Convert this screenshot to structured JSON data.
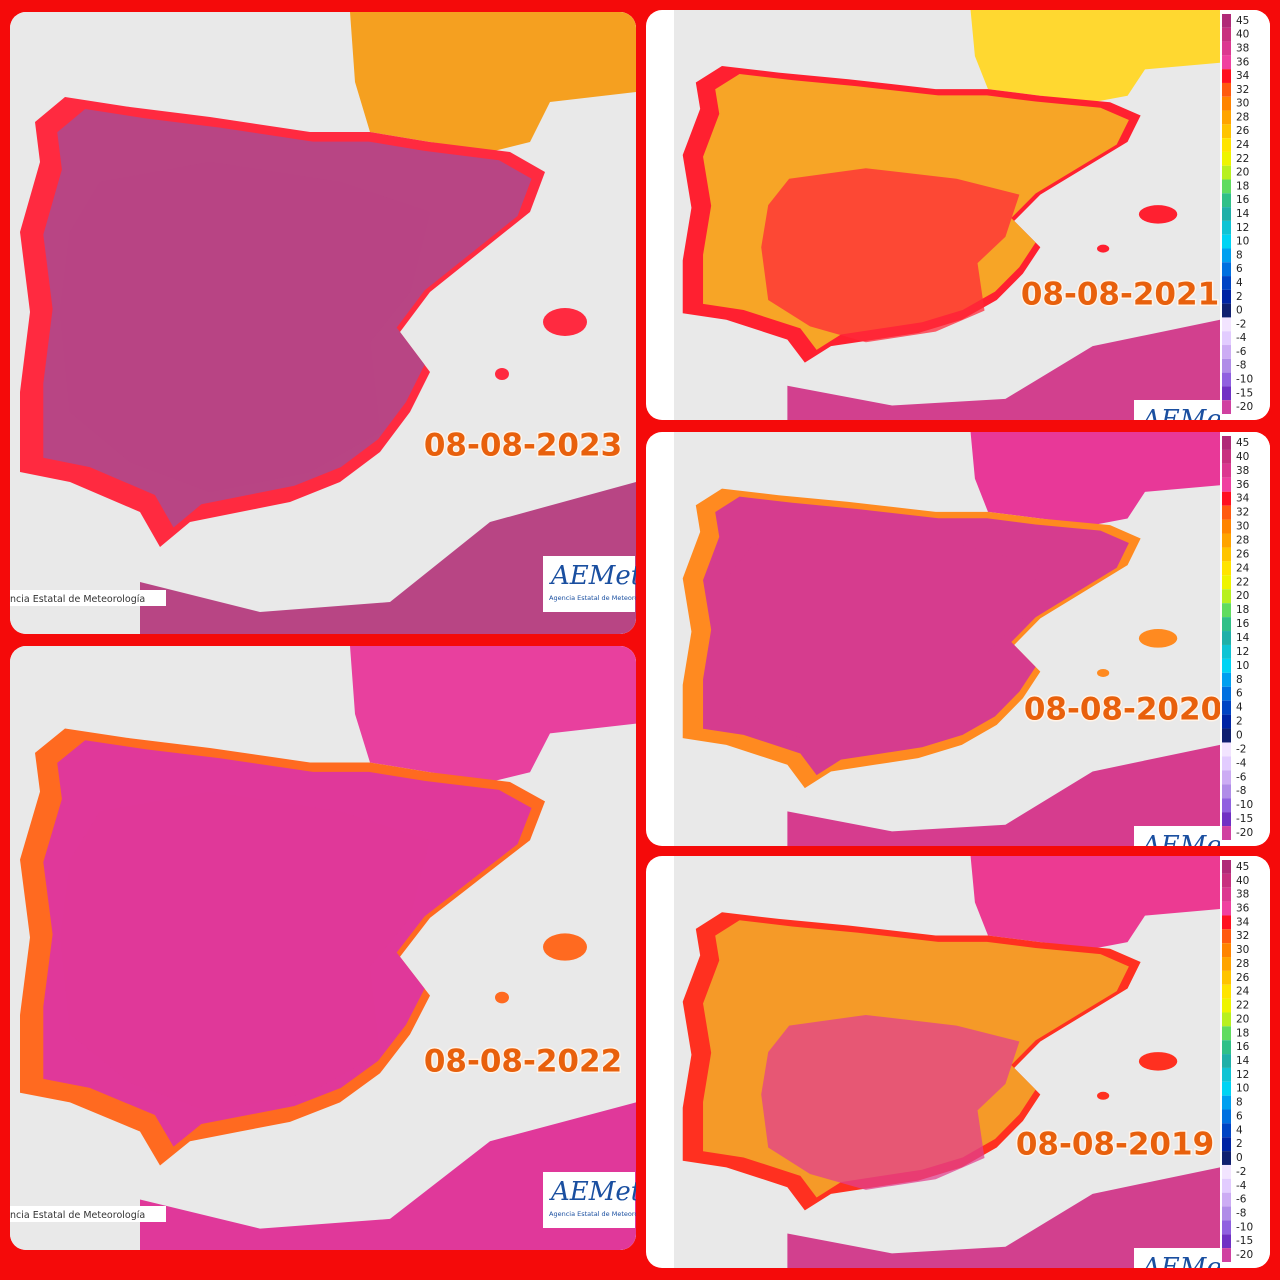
{
  "panels": [
    {
      "date": "08-08-2023",
      "logo": "AEMet",
      "logo_caption": "Agencia Estatal de Meteorología",
      "footer": "ncia Estatal de Meteorología"
    },
    {
      "date": "08-08-2022",
      "logo": "AEMet",
      "logo_caption": "Agencia Estatal de Meteorología",
      "footer": "ncia Estatal de Meteorología"
    },
    {
      "date": "08-08-2021",
      "logo": "AEMet"
    },
    {
      "date": "08-08-2020",
      "logo": "AEMet"
    },
    {
      "date": "08-08-2019",
      "logo": "AEMet"
    }
  ],
  "legend": {
    "items": [
      {
        "label": "45",
        "color": "#b02a78"
      },
      {
        "label": "40",
        "color": "#c8307f"
      },
      {
        "label": "38",
        "color": "#dc3890"
      },
      {
        "label": "36",
        "color": "#f040a0"
      },
      {
        "label": "34",
        "color": "#ff1020"
      },
      {
        "label": "32",
        "color": "#ff5a10"
      },
      {
        "label": "30",
        "color": "#ff8400"
      },
      {
        "label": "28",
        "color": "#ffa400"
      },
      {
        "label": "26",
        "color": "#ffc400"
      },
      {
        "label": "24",
        "color": "#ffe400"
      },
      {
        "label": "22",
        "color": "#eef400"
      },
      {
        "label": "20",
        "color": "#b8f020"
      },
      {
        "label": "18",
        "color": "#60dc60"
      },
      {
        "label": "16",
        "color": "#30c088"
      },
      {
        "label": "14",
        "color": "#20b0a8"
      },
      {
        "label": "12",
        "color": "#10c4d4"
      },
      {
        "label": "10",
        "color": "#00d4f4"
      },
      {
        "label": "8",
        "color": "#00a0f0"
      },
      {
        "label": "6",
        "color": "#0070e0"
      },
      {
        "label": "4",
        "color": "#0044c4"
      },
      {
        "label": "2",
        "color": "#0024a4"
      },
      {
        "label": "0",
        "color": "#102070"
      },
      {
        "label": "-2",
        "color": "#f2e4ff"
      },
      {
        "label": "-4",
        "color": "#e2ccff"
      },
      {
        "label": "-6",
        "color": "#ccacf4"
      },
      {
        "label": "-8",
        "color": "#b08ce8"
      },
      {
        "label": "-10",
        "color": "#9060e0"
      },
      {
        "label": "-15",
        "color": "#7030c4"
      },
      {
        "label": "-20",
        "color": "#d040a0"
      }
    ]
  }
}
